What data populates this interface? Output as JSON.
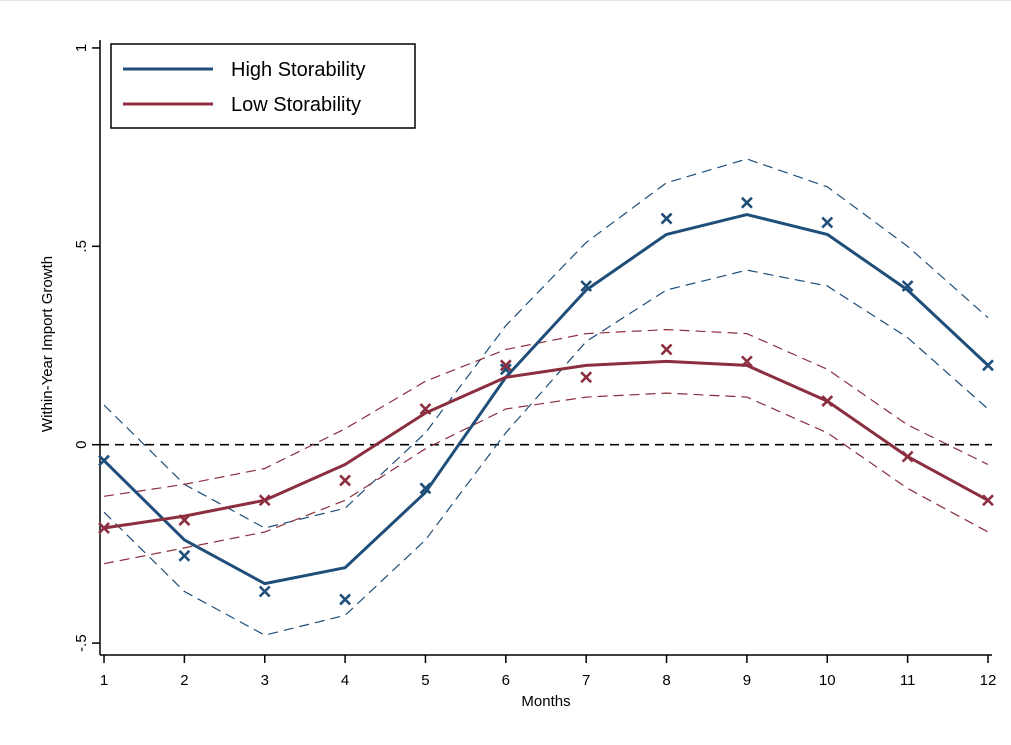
{
  "chart_data": {
    "type": "line",
    "title": "",
    "xlabel": "Months",
    "ylabel": "Within-Year Import Growth",
    "x": [
      1,
      2,
      3,
      4,
      5,
      6,
      7,
      8,
      9,
      10,
      11,
      12
    ],
    "xlim": [
      0.95,
      12.05
    ],
    "ylim": [
      -0.53,
      1.02
    ],
    "yticks": [
      -0.5,
      0,
      0.5,
      1
    ],
    "ytick_labels": [
      "-.5",
      "0",
      ".5",
      "1"
    ],
    "xticks": [
      1,
      2,
      3,
      4,
      5,
      6,
      7,
      8,
      9,
      10,
      11,
      12
    ],
    "xtick_labels": [
      "1",
      "2",
      "3",
      "4",
      "5",
      "6",
      "7",
      "8",
      "9",
      "10",
      "11",
      "12"
    ],
    "reference_line": {
      "y": 0,
      "style": "dashed"
    },
    "grid": false,
    "legend_position": "top-left",
    "series": [
      {
        "name": "High Storability",
        "color": "#1f4e79",
        "fit": [
          -0.04,
          -0.24,
          -0.35,
          -0.31,
          -0.12,
          0.17,
          0.39,
          0.53,
          0.58,
          0.53,
          0.39,
          0.2
        ],
        "upper": [
          0.1,
          -0.1,
          -0.21,
          -0.16,
          0.03,
          0.3,
          0.51,
          0.66,
          0.72,
          0.65,
          0.5,
          0.32
        ],
        "lower": [
          -0.17,
          -0.37,
          -0.48,
          -0.43,
          -0.24,
          0.03,
          0.26,
          0.39,
          0.44,
          0.4,
          0.27,
          0.09
        ],
        "points": [
          -0.04,
          -0.28,
          -0.37,
          -0.39,
          -0.11,
          0.19,
          0.4,
          0.57,
          0.61,
          0.56,
          0.4,
          0.2
        ]
      },
      {
        "name": "Low Storability",
        "color": "#8b2e3f",
        "fit": [
          -0.21,
          -0.18,
          -0.14,
          -0.05,
          0.08,
          0.17,
          0.2,
          0.21,
          0.2,
          0.11,
          -0.03,
          -0.14
        ],
        "upper": [
          -0.13,
          -0.1,
          -0.06,
          0.04,
          0.16,
          0.24,
          0.28,
          0.29,
          0.28,
          0.19,
          0.05,
          -0.05
        ],
        "lower": [
          -0.3,
          -0.26,
          -0.22,
          -0.14,
          -0.01,
          0.09,
          0.12,
          0.13,
          0.12,
          0.03,
          -0.11,
          -0.22
        ],
        "points": [
          -0.21,
          -0.19,
          -0.14,
          -0.09,
          0.09,
          0.2,
          0.17,
          0.24,
          0.21,
          0.11,
          -0.03,
          -0.14
        ]
      }
    ]
  }
}
